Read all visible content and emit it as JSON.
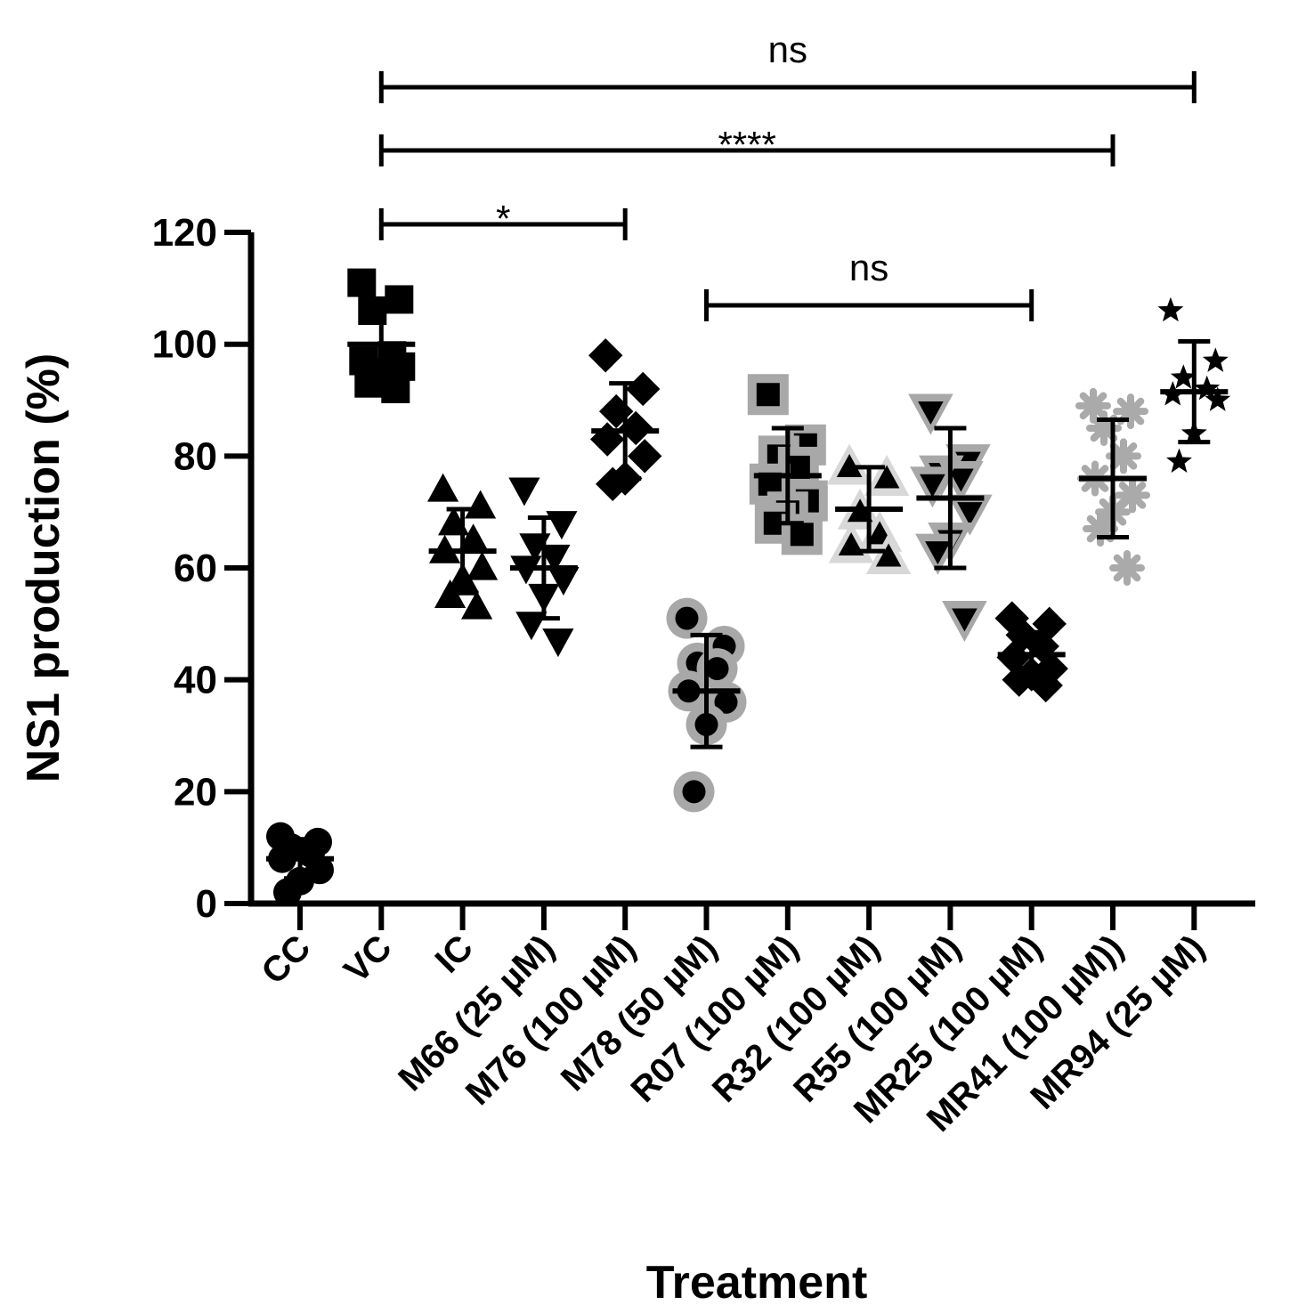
{
  "chart_data": {
    "type": "scatter",
    "title": "",
    "xlabel": "Treatment",
    "ylabel": "NS1 production (%)",
    "ylim": [
      0,
      120
    ],
    "yticks": [
      0,
      20,
      40,
      60,
      80,
      100,
      120
    ],
    "yticklabels": [
      "0",
      "20",
      "40",
      "60",
      "80",
      "100",
      "120"
    ],
    "categories": [
      "CC",
      "VC",
      "IC",
      "M66 (25 µM)",
      "M76 (100 µM)",
      "M78 (50 µM)",
      "R07 (100 µM)",
      "R32 (100 µM)",
      "R55 (100 µM)",
      "MR25 (100 µM)",
      "MR41 (100 µM))",
      "MR94 (25 µM)"
    ],
    "series": [
      {
        "name": "CC",
        "marker": "circle",
        "color": "#000000",
        "values": [
          12,
          11,
          10,
          9,
          8,
          6,
          4,
          2
        ],
        "mean": 8,
        "sd": 3.5
      },
      {
        "name": "VC",
        "marker": "square",
        "color": "#000000",
        "values": [
          111,
          108,
          106,
          98,
          97,
          96,
          95,
          93,
          92
        ],
        "mean": 100,
        "sd": 6
      },
      {
        "name": "IC",
        "marker": "triangle-up",
        "color": "#000000",
        "values": [
          74,
          71,
          68,
          65,
          63,
          60,
          58,
          55,
          53
        ],
        "mean": 63,
        "sd": 7.5
      },
      {
        "name": "M66 (25 µM)",
        "marker": "triangle-down",
        "color": "#000000",
        "values": [
          74,
          68,
          64,
          62,
          60,
          58,
          55,
          50,
          47
        ],
        "mean": 60,
        "sd": 9
      },
      {
        "name": "M76 (100 µM)",
        "marker": "diamond",
        "color": "#000000",
        "values": [
          98,
          92,
          88,
          85,
          83,
          80,
          76,
          75
        ],
        "mean": 84.5,
        "sd": 8.5
      },
      {
        "name": "M78 (50 µM)",
        "marker": "circle-gray-ring",
        "color": "#000000",
        "values": [
          51,
          46,
          43,
          42,
          38,
          36,
          32,
          20
        ],
        "mean": 38,
        "sd": 10
      },
      {
        "name": "R07 (100 µM)",
        "marker": "square-gray-ring",
        "color": "#000000",
        "values": [
          91,
          82,
          80,
          78,
          75,
          72,
          70,
          68,
          66
        ],
        "mean": 76.5,
        "sd": 8.5
      },
      {
        "name": "R32 (100 µM)",
        "marker": "triangle-up-light-ring",
        "color": "#000000",
        "values": [
          78,
          76,
          70,
          66,
          64,
          62
        ],
        "mean": 70.5,
        "sd": 7.5
      },
      {
        "name": "R55 (100 µM)",
        "marker": "triangle-down-gray-ring",
        "color": "#000000",
        "values": [
          88,
          79,
          77,
          76,
          75,
          70,
          65,
          63,
          51
        ],
        "mean": 72.5,
        "sd": 12.5
      },
      {
        "name": "MR25 (100 µM)",
        "marker": "diamond",
        "color": "#000000",
        "values": [
          51,
          50,
          48,
          46,
          44,
          42,
          41,
          40,
          39
        ],
        "mean": 44.5,
        "sd": 4
      },
      {
        "name": "MR41 (100 µM))",
        "marker": "asterisk",
        "color": "#aaaaaa",
        "values": [
          89,
          88,
          85,
          80,
          76,
          73,
          70,
          67,
          60
        ],
        "mean": 76,
        "sd": 10.5
      },
      {
        "name": "MR94 (25 µM)",
        "marker": "star",
        "color": "#000000",
        "values": [
          106,
          97,
          94,
          92,
          91,
          90,
          84,
          79
        ],
        "mean": 91.5,
        "sd": 9
      }
    ],
    "significance": [
      {
        "from": "VC",
        "to": "M76 (100 µM)",
        "label": "*",
        "level": 0
      },
      {
        "from": "M78 (50 µM)",
        "to": "MR25 (100 µM)",
        "label": "ns",
        "level": 1
      },
      {
        "from": "VC",
        "to": "MR41 (100 µM))",
        "label": "****",
        "level": 2
      },
      {
        "from": "VC",
        "to": "MR94 (25 µM)",
        "label": "ns",
        "level": 3
      }
    ]
  }
}
